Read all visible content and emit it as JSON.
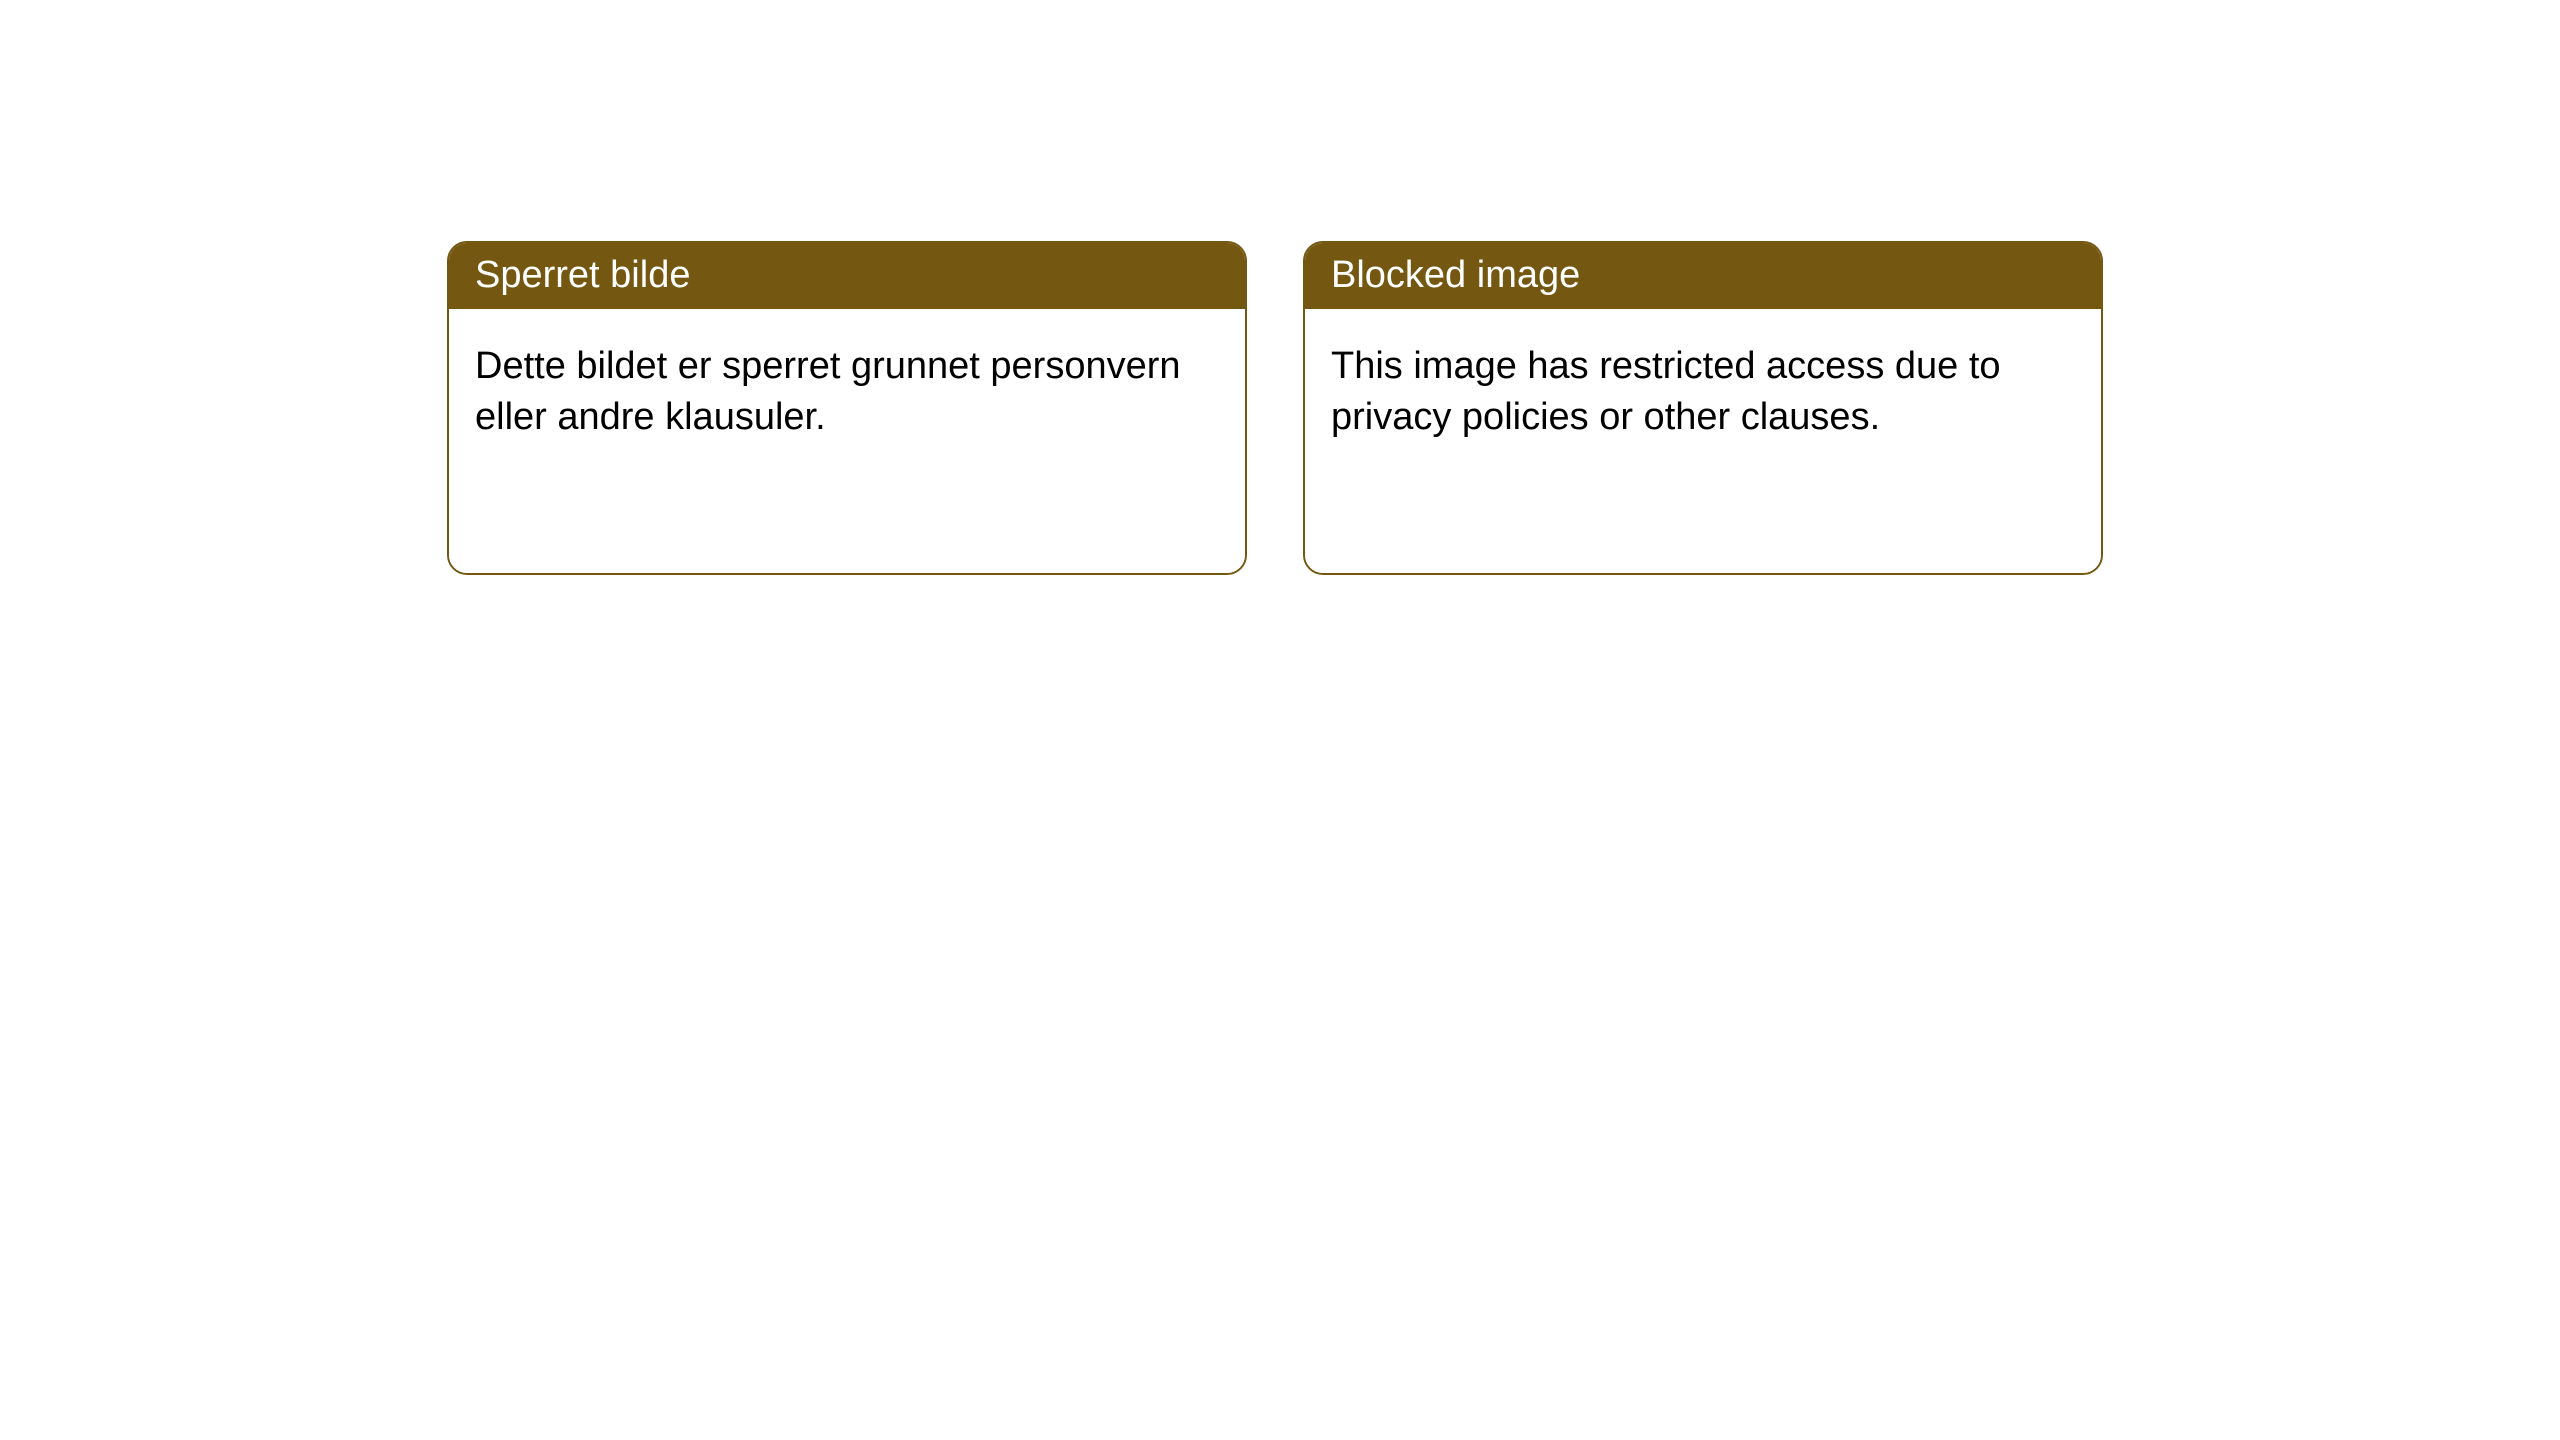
{
  "styling": {
    "header_bg": "#745710",
    "header_text_color": "#ffffff",
    "card_border_color": "#745710",
    "card_border_width": 2,
    "card_border_radius": 20,
    "body_bg": "#ffffff",
    "body_text_color": "#000000",
    "page_bg": "#ffffff",
    "header_fontsize": 38,
    "body_fontsize": 38,
    "font_family": "Arial, Helvetica, sans-serif"
  },
  "cards": [
    {
      "title": "Sperret bilde",
      "body": "Dette bildet er sperret grunnet personvern eller andre klausuler."
    },
    {
      "title": "Blocked image",
      "body": "This image has restricted access due to privacy policies or other clauses."
    }
  ]
}
